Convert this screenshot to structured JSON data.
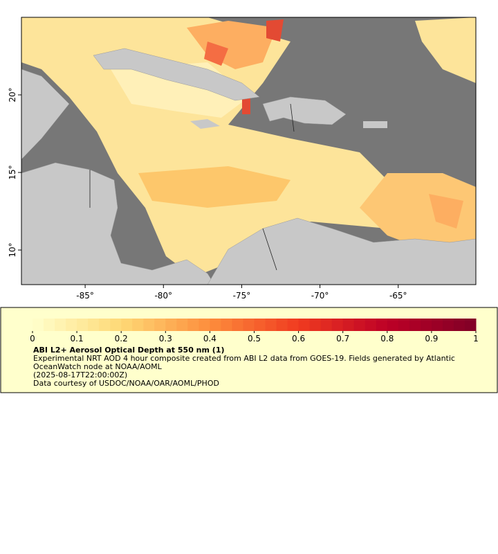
{
  "map": {
    "xlim": [
      -89.07,
      -60.04
    ],
    "ylim": [
      7.77,
      25
    ],
    "xticks": [
      {
        "value": -85,
        "label": "-85°"
      },
      {
        "value": -80,
        "label": "-80°"
      },
      {
        "value": -75,
        "label": "-75°"
      },
      {
        "value": -70,
        "label": "-70°"
      },
      {
        "value": -65,
        "label": "-65°"
      }
    ],
    "yticks": [
      {
        "value": 10,
        "label": "10°"
      },
      {
        "value": 15,
        "label": "15°"
      },
      {
        "value": 20,
        "label": "20°"
      }
    ]
  },
  "colorbar": {
    "lim": [
      0,
      1
    ],
    "ticks": [
      0,
      0.1,
      0.2,
      0.3,
      0.4,
      0.5,
      0.6,
      0.7,
      0.8,
      0.9,
      1
    ]
  },
  "legend": {
    "title": "ABI L2+ Aerosol Optical Depth at 550 nm (1)",
    "description": "Experimental NRT AOD 4 hour composite created from ABI L2 data from GOES-19. Fields generated by Atlantic OceanWatch node at NOAA/AOML",
    "time": "(2025-08-17T22:00:00Z)",
    "credit": "Data courtesy of USDOC/NOAA/OAR/AOML/PHOD"
  }
}
